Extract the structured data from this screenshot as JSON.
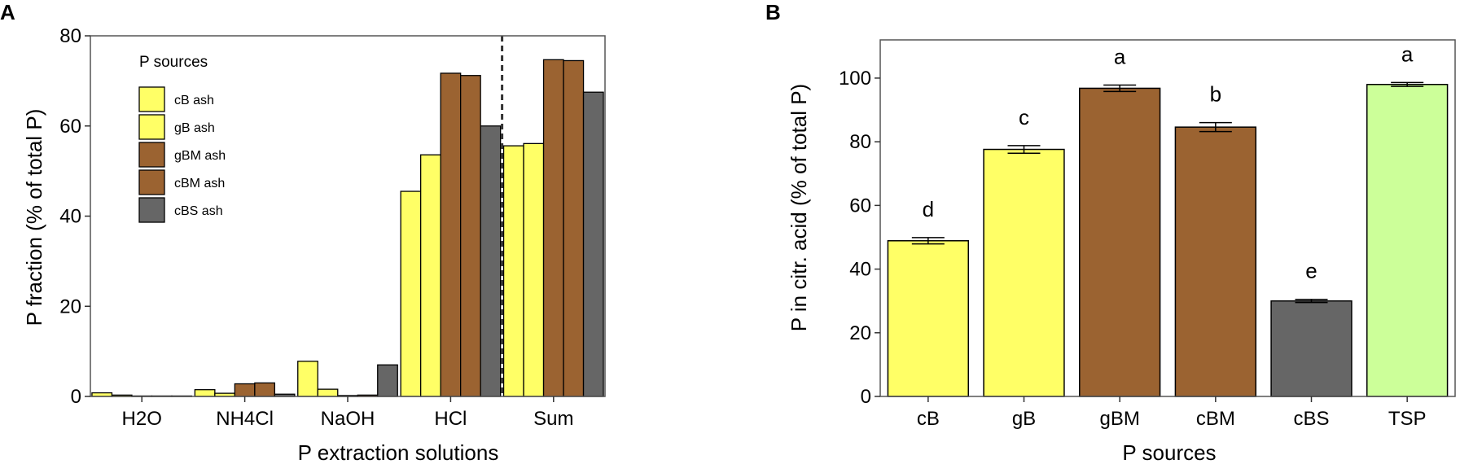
{
  "colors": {
    "cB": "#ffff66",
    "gB": "#ffff66",
    "gBM": "#9b6331",
    "cBM": "#9b6331",
    "cBS": "#666666",
    "TSP": "#ccff99",
    "stroke": "#000000"
  },
  "chart_data": [
    {
      "panel": "A",
      "type": "bar",
      "title": "",
      "xlabel": "P extraction solutions",
      "ylabel": "P fraction (% of total P)",
      "ylim": [
        0,
        80
      ],
      "yticks": [
        0,
        20,
        40,
        60,
        80
      ],
      "categories": [
        "H2O",
        "NH4Cl",
        "NaOH",
        "HCl",
        "Sum"
      ],
      "legend": {
        "title": "P sources",
        "position": "top-left"
      },
      "divider_after_category": "HCl",
      "series": [
        {
          "name": "cB ash",
          "color_key": "cB",
          "values": [
            0.8,
            1.5,
            7.8,
            45.5,
            55.6
          ]
        },
        {
          "name": "gB ash",
          "color_key": "gB",
          "values": [
            0.3,
            0.7,
            1.6,
            53.6,
            56.1
          ]
        },
        {
          "name": "gBM ash",
          "color_key": "gBM",
          "values": [
            0.1,
            2.8,
            0.2,
            71.7,
            74.7
          ]
        },
        {
          "name": "cBM ash",
          "color_key": "cBM",
          "values": [
            0.1,
            3.0,
            0.3,
            71.2,
            74.5
          ]
        },
        {
          "name": "cBS ash",
          "color_key": "cBS",
          "values": [
            0.1,
            0.5,
            7.0,
            60.0,
            67.5
          ]
        }
      ]
    },
    {
      "panel": "B",
      "type": "bar",
      "title": "",
      "xlabel": "P sources",
      "ylabel": "P in citr. acid (% of total P)",
      "ylim": [
        0,
        112
      ],
      "yticks": [
        0,
        20,
        40,
        60,
        80,
        100
      ],
      "categories": [
        "cB",
        "gB",
        "gBM",
        "cBM",
        "cBS",
        "TSP"
      ],
      "values": [
        48.9,
        77.6,
        96.8,
        84.6,
        30.0,
        98.0
      ],
      "errors": [
        1.0,
        1.2,
        1.0,
        1.4,
        0.5,
        0.6
      ],
      "letters": [
        "d",
        "c",
        "a",
        "b",
        "e",
        "a"
      ],
      "color_keys": [
        "cB",
        "gB",
        "gBM",
        "cBM",
        "cBS",
        "TSP"
      ]
    }
  ]
}
